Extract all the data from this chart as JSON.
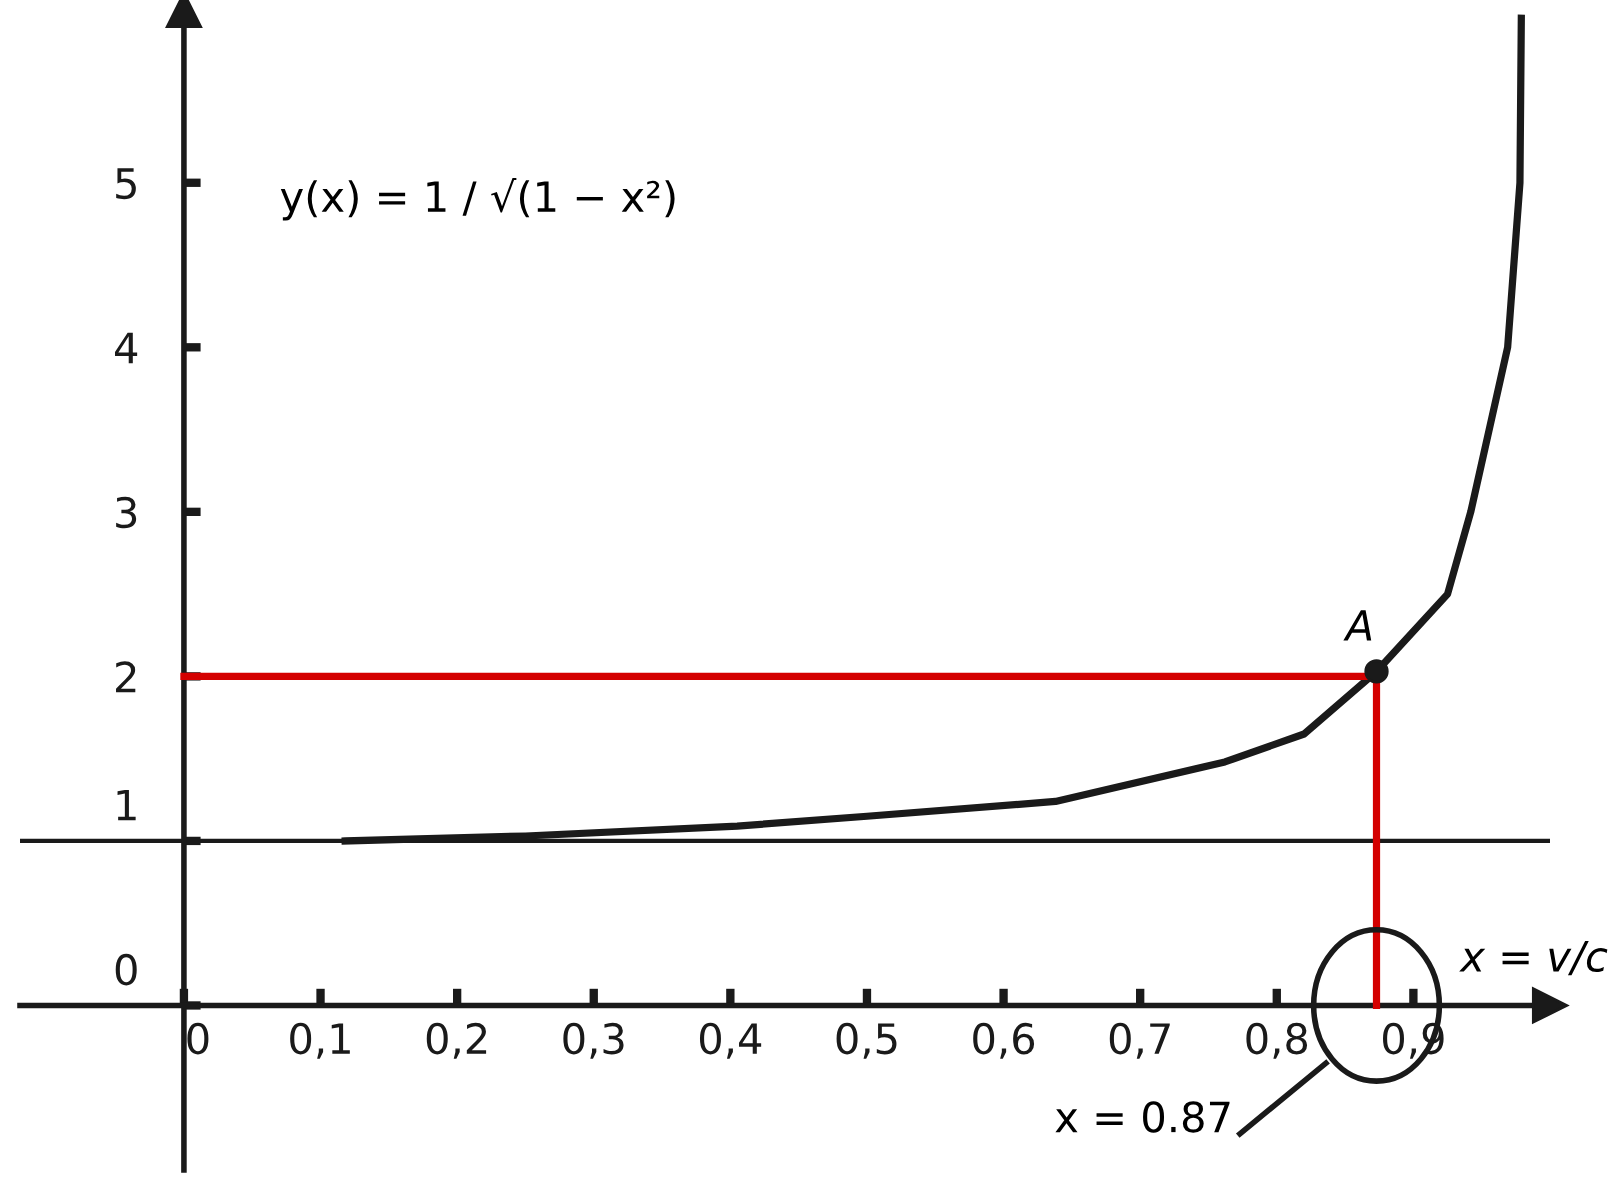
{
  "chart_data": {
    "type": "line",
    "xlabel": "x = v/c",
    "xlim": [
      -0.12,
      1.0
    ],
    "ylim": [
      -1.0,
      6.05
    ],
    "xticks": [
      {
        "value": 0,
        "label": "0"
      },
      {
        "value": 0.1,
        "label": "0,1"
      },
      {
        "value": 0.2,
        "label": "0,2"
      },
      {
        "value": 0.3,
        "label": "0,3"
      },
      {
        "value": 0.4,
        "label": "0,4"
      },
      {
        "value": 0.5,
        "label": "0,5"
      },
      {
        "value": 0.6,
        "label": "0,6"
      },
      {
        "value": 0.7,
        "label": "0,7"
      },
      {
        "value": 0.8,
        "label": "0,8"
      },
      {
        "value": 0.9,
        "label": "0,9"
      }
    ],
    "yticks": [
      0,
      1,
      2,
      3,
      4,
      5
    ],
    "series": [
      {
        "color": "#1a1a1a",
        "x": [
          0.118,
          0.25,
          0.405,
          0.5,
          0.638,
          0.762,
          0.82,
          0.873,
          0.925,
          0.942,
          0.969,
          0.978,
          0.979
        ],
        "values": [
          1.0,
          1.03,
          1.09,
          1.15,
          1.24,
          1.48,
          1.65,
          2.03,
          2.5,
          3.0,
          4.0,
          5.0,
          6.0
        ]
      },
      {
        "type": "line",
        "color": "#d40000",
        "x": [
          0,
          0.873,
          0.873
        ],
        "values": [
          2,
          2,
          0
        ]
      },
      {
        "type": "scatter",
        "color": "#1a1a1a",
        "x": [
          0.873
        ],
        "values": [
          2.03
        ]
      }
    ],
    "ref_lines": [
      {
        "axis": "y",
        "value": 1,
        "color": "#1a1a1a"
      }
    ],
    "annotations": [
      "y(x) = 1 / √(1 − x²)",
      {
        "text": "A",
        "x": 0.873,
        "y": 2.03
      },
      "x = 0.87"
    ],
    "grid": false,
    "legend": false
  }
}
